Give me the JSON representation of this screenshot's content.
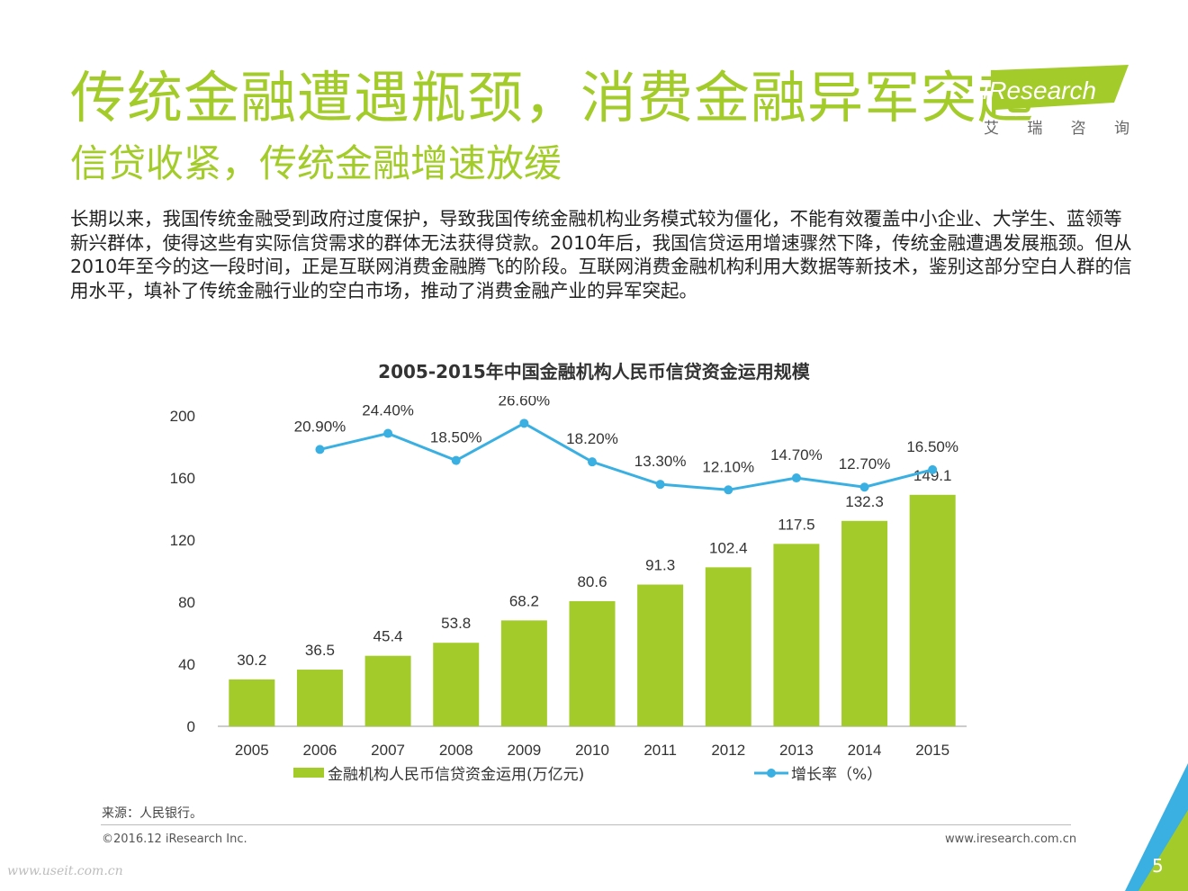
{
  "header": {
    "title": "传统金融遭遇瓶颈，消费金融异军突起",
    "subtitle": "信贷收紧，传统金融增速放缓"
  },
  "logo": {
    "brand": "iResearch",
    "subtitle_chars": [
      "艾",
      "瑞",
      "咨",
      "询"
    ]
  },
  "intro_text": "长期以来，我国传统金融受到政府过度保护，导致我国传统金融机构业务模式较为僵化，不能有效覆盖中小企业、大学生、蓝领等新兴群体，使得这些有实际信贷需求的群体无法获得贷款。2010年后，我国信贷运用增速骤然下降，传统金融遭遇发展瓶颈。但从2010年至今的这一段时间，正是互联网消费金融腾飞的阶段。互联网消费金融机构利用大数据等新技术，鉴别这部分空白人群的信用水平，填补了传统金融行业的空白市场，推动了消费金融产业的异军突起。",
  "chart_data": {
    "type": "bar",
    "title": "2005-2015年中国金融机构人民币信贷资金运用规模",
    "categories": [
      "2005",
      "2006",
      "2007",
      "2008",
      "2009",
      "2010",
      "2011",
      "2012",
      "2013",
      "2014",
      "2015"
    ],
    "series": [
      {
        "name": "金融机构人民币信贷资金运用(万亿元)",
        "type": "bar",
        "values": [
          30.2,
          36.5,
          45.4,
          53.8,
          68.2,
          80.6,
          91.3,
          102.4,
          117.5,
          132.3,
          149.1
        ],
        "labels": [
          "30.2",
          "36.5",
          "45.4",
          "53.8",
          "68.2",
          "80.6",
          "91.3",
          "102.4",
          "117.5",
          "132.3",
          "149.1"
        ],
        "color": "#a3cc2a"
      },
      {
        "name": "增长率（%）",
        "type": "line",
        "values": [
          null,
          20.9,
          24.4,
          18.5,
          26.6,
          18.2,
          13.3,
          12.1,
          14.7,
          12.7,
          16.5
        ],
        "labels": [
          "",
          "20.90%",
          "24.40%",
          "18.50%",
          "26.60%",
          "18.20%",
          "13.30%",
          "12.10%",
          "14.70%",
          "12.70%",
          "16.50%"
        ],
        "color": "#3ab0e2"
      }
    ],
    "yticks": [
      "0",
      "40",
      "80",
      "120",
      "160",
      "200"
    ],
    "ylim": [
      0,
      200
    ],
    "xlabel": "",
    "ylabel": "",
    "legend_position": "bottom"
  },
  "footer": {
    "source": "来源：人民银行。",
    "copyright": "©2016.12 iResearch Inc.",
    "website": "www.iresearch.com.cn",
    "page_number": "5",
    "watermark": "www.useit.com.cn"
  },
  "colors": {
    "accent_green": "#a3cc2a",
    "line_blue": "#3ab0e2"
  }
}
